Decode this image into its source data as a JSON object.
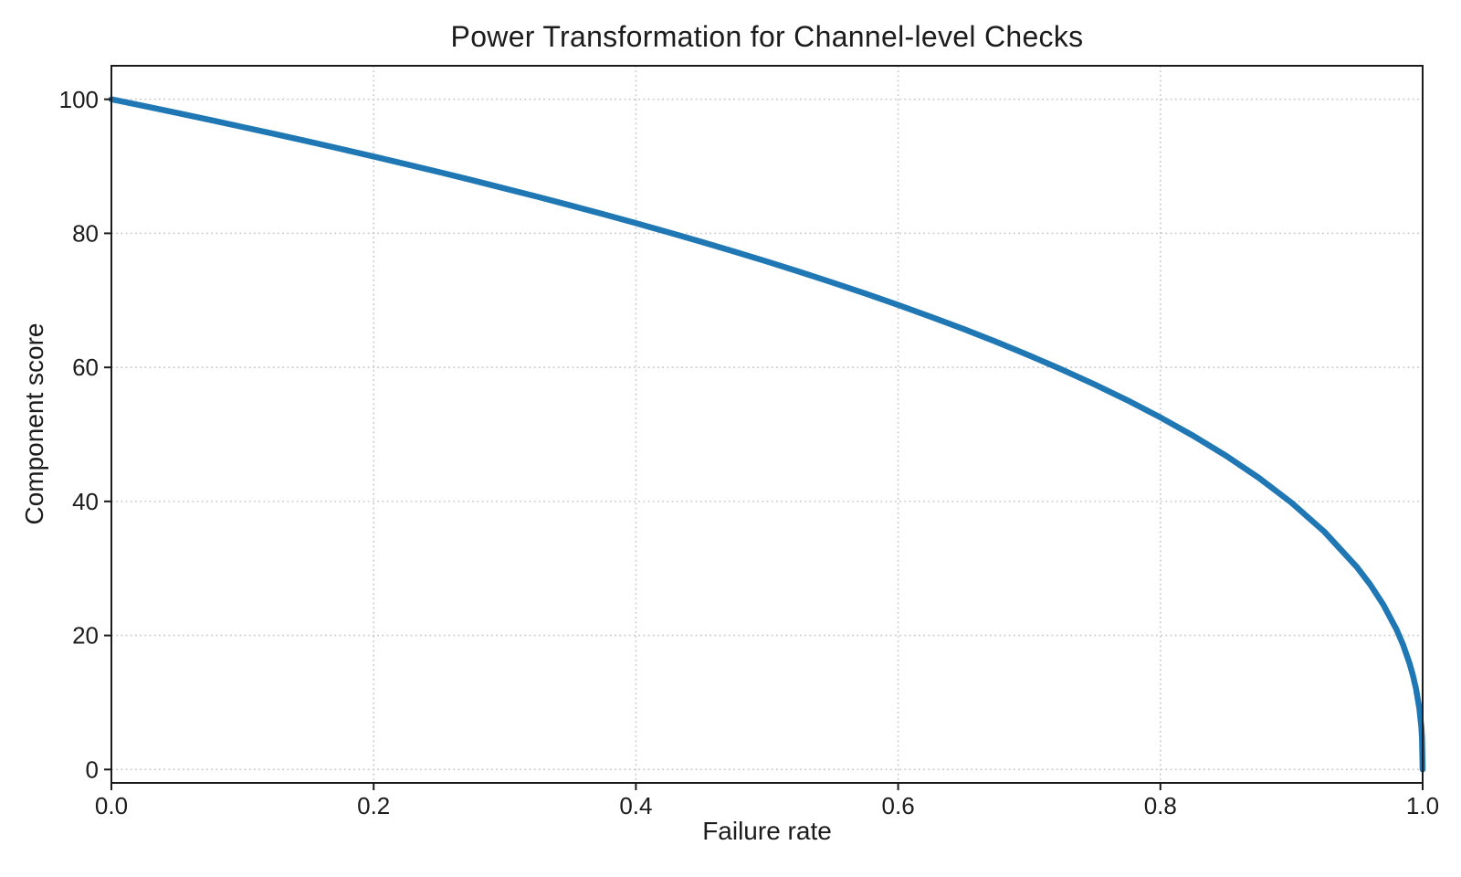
{
  "chart_data": {
    "type": "line",
    "title": "Power Transformation for Channel-level Checks",
    "xlabel": "Failure rate",
    "ylabel": "Component score",
    "xlim": [
      0.0,
      1.0
    ],
    "ylim": [
      -2,
      105
    ],
    "grid": {
      "visible": true,
      "style": "dotted"
    },
    "legend": "none",
    "curve_formula": "score = 100 * (1 - failure_rate)^0.4",
    "x_ticks": {
      "values": [
        0.0,
        0.2,
        0.4,
        0.6,
        0.8,
        1.0
      ],
      "labels": [
        "0.0",
        "0.2",
        "0.4",
        "0.6",
        "0.8",
        "1.0"
      ]
    },
    "y_ticks": {
      "values": [
        0,
        20,
        40,
        60,
        80,
        100
      ],
      "labels": [
        "0",
        "20",
        "40",
        "60",
        "80",
        "100"
      ]
    },
    "colors": {
      "background": "#ffffff",
      "text": "#1c1c1c",
      "spine": "#1a1a1a",
      "grid": "#c9c9c9",
      "line": "#1f77b4"
    },
    "line": {
      "color": "#1f77b4",
      "width": 6.5
    },
    "series": [
      {
        "name": "component-score-curve",
        "x": [
          0,
          0.025,
          0.05,
          0.075,
          0.1,
          0.125,
          0.15,
          0.175,
          0.2,
          0.225,
          0.25,
          0.275,
          0.3,
          0.325,
          0.35,
          0.375,
          0.4,
          0.425,
          0.45,
          0.475,
          0.5,
          0.525,
          0.55,
          0.575,
          0.6,
          0.625,
          0.65,
          0.675,
          0.7,
          0.725,
          0.75,
          0.775,
          0.8,
          0.825,
          0.85,
          0.875,
          0.9,
          0.925,
          0.95,
          0.96,
          0.97,
          0.98,
          0.985,
          0.99,
          0.9925,
          0.995,
          0.9975,
          0.999,
          0.9995,
          1.0
        ],
        "y": [
          100,
          98.99,
          97.97,
          96.93,
          95.87,
          94.8,
          93.71,
          92.59,
          91.46,
          90.31,
          89.13,
          87.93,
          86.7,
          85.45,
          84.17,
          82.86,
          81.52,
          80.14,
          78.73,
          77.28,
          75.79,
          74.25,
          72.66,
          71.02,
          69.31,
          67.55,
          65.71,
          63.79,
          61.78,
          59.67,
          57.44,
          55.07,
          52.53,
          49.8,
          46.82,
          43.53,
          39.81,
          35.48,
          30.17,
          27.59,
          24.6,
          20.91,
          18.64,
          15.85,
          14.13,
          12.01,
          9.11,
          6.31,
          4.78,
          0
        ]
      }
    ]
  }
}
